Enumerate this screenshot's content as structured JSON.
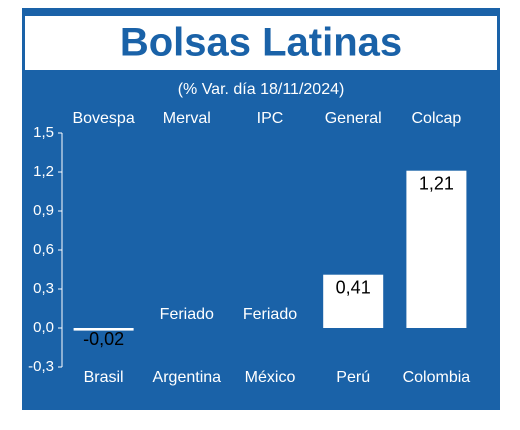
{
  "chart_data": {
    "type": "bar",
    "title": "Bolsas Latinas",
    "subtitle": "(% Var. día 18/11/2024)",
    "indices": [
      "Bovespa",
      "Merval",
      "IPC",
      "General",
      "Colcap"
    ],
    "categories": [
      "Brasil",
      "Argentina",
      "México",
      "Perú",
      "Colombia"
    ],
    "values": [
      -0.02,
      null,
      null,
      0.41,
      1.21
    ],
    "value_labels": [
      "-0,02",
      "Feriado",
      "Feriado",
      "0,41",
      "1,21"
    ],
    "color": "#ffffff",
    "ylim": [
      -0.3,
      1.5
    ],
    "yticks": [
      {
        "value": -0.3,
        "label": "-0,3"
      },
      {
        "value": 0,
        "label": "0,0"
      },
      {
        "value": 0.3,
        "label": "0,3"
      },
      {
        "value": 0.6,
        "label": "0,6"
      },
      {
        "value": 0.9,
        "label": "0,9"
      },
      {
        "value": 1.2,
        "label": "1,2"
      },
      {
        "value": 1.5,
        "label": "1,5"
      }
    ],
    "grid": false
  }
}
